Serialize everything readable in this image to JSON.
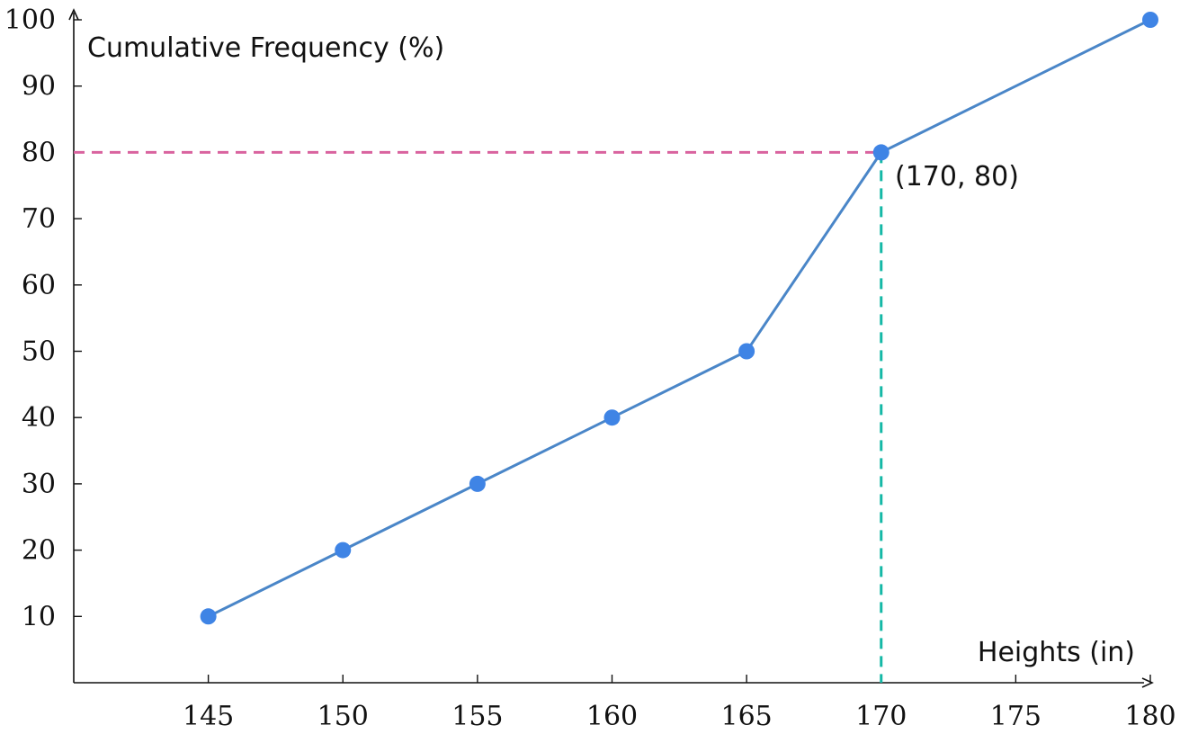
{
  "chart_data": {
    "type": "line",
    "xlabel": "Heights (in)",
    "ylabel": "Cumulative Frequency (%)",
    "x_ticks": [
      145,
      150,
      155,
      160,
      165,
      170,
      175,
      180
    ],
    "y_ticks": [
      10,
      20,
      30,
      40,
      50,
      60,
      70,
      80,
      90,
      100
    ],
    "xlim": [
      140,
      180
    ],
    "ylim": [
      0,
      100
    ],
    "grid": false,
    "series": [
      {
        "points": [
          {
            "x": 145,
            "y": 10
          },
          {
            "x": 150,
            "y": 20
          },
          {
            "x": 155,
            "y": 30
          },
          {
            "x": 160,
            "y": 40
          },
          {
            "x": 165,
            "y": 50
          },
          {
            "x": 170,
            "y": 80
          },
          {
            "x": 180,
            "y": 100
          }
        ]
      }
    ],
    "highlight": {
      "x": 170,
      "y": 80,
      "label": "(170, 80)"
    },
    "colors": {
      "line": "#4a86c8",
      "marker": "#3f84e5",
      "horizontal_guide": "#d9639f",
      "vertical_guide": "#14b8a6",
      "axis": "#111111"
    }
  }
}
